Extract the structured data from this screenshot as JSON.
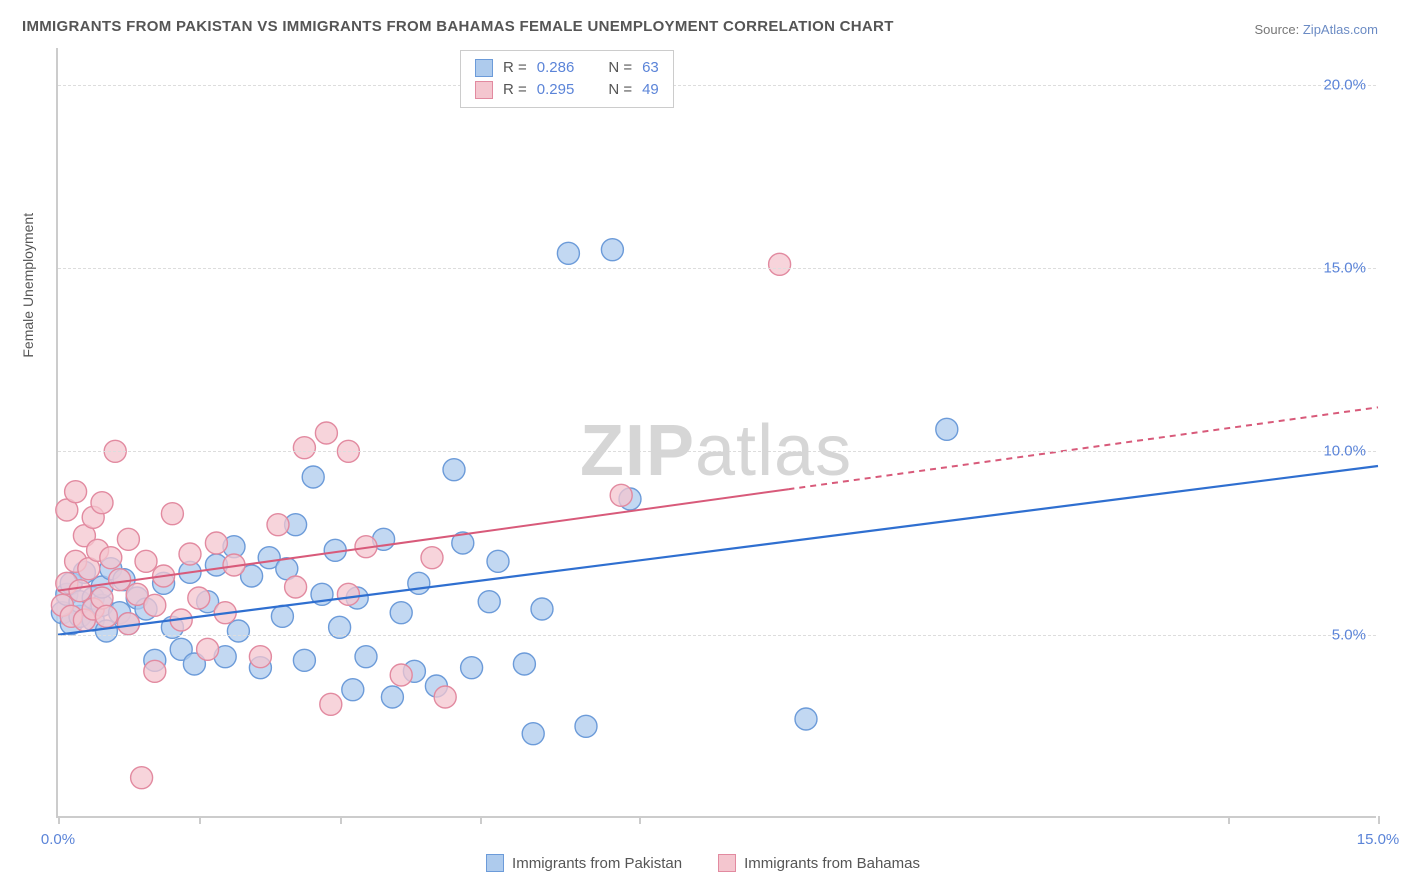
{
  "title": "IMMIGRANTS FROM PAKISTAN VS IMMIGRANTS FROM BAHAMAS FEMALE UNEMPLOYMENT CORRELATION CHART",
  "source_prefix": "Source: ",
  "source_link": "ZipAtlas.com",
  "yaxis_label": "Female Unemployment",
  "watermark_a": "ZIP",
  "watermark_b": "atlas",
  "chart": {
    "type": "scatter",
    "xlim": [
      0,
      15
    ],
    "ylim": [
      0,
      21
    ],
    "ytick_values": [
      5,
      10,
      15,
      20
    ],
    "ytick_labels": [
      "5.0%",
      "10.0%",
      "15.0%",
      "20.0%"
    ],
    "xtick_values": [
      0,
      1.6,
      3.2,
      4.8,
      6.6,
      13.3,
      15
    ],
    "xtick_labels": {
      "0": "0.0%",
      "15": "15.0%"
    },
    "grid_color": "#dddddd",
    "axis_color": "#cccccc",
    "background_color": "#ffffff",
    "series": [
      {
        "name": "Immigrants from Pakistan",
        "marker_fill": "#aecbed",
        "marker_stroke": "#6c9bd9",
        "marker_opacity": 0.75,
        "marker_radius": 11,
        "line_color": "#2f6fd0",
        "line_width": 2.2,
        "R": 0.286,
        "N": 63,
        "trend": {
          "x0": 0,
          "y0": 5.0,
          "x1": 15,
          "y1": 9.6,
          "solid_until": 15
        },
        "points": [
          [
            0.05,
            5.6
          ],
          [
            0.1,
            6.1
          ],
          [
            0.15,
            5.3
          ],
          [
            0.15,
            6.4
          ],
          [
            0.25,
            5.5
          ],
          [
            0.25,
            5.9
          ],
          [
            0.3,
            6.7
          ],
          [
            0.4,
            5.4
          ],
          [
            0.4,
            6.0
          ],
          [
            0.5,
            5.8
          ],
          [
            0.5,
            6.3
          ],
          [
            0.55,
            5.1
          ],
          [
            0.6,
            6.8
          ],
          [
            0.7,
            5.6
          ],
          [
            0.75,
            6.5
          ],
          [
            0.8,
            5.3
          ],
          [
            0.9,
            6.0
          ],
          [
            1.0,
            5.7
          ],
          [
            1.1,
            4.3
          ],
          [
            1.2,
            6.4
          ],
          [
            1.3,
            5.2
          ],
          [
            1.4,
            4.6
          ],
          [
            1.5,
            6.7
          ],
          [
            1.55,
            4.2
          ],
          [
            1.7,
            5.9
          ],
          [
            1.8,
            6.9
          ],
          [
            1.9,
            4.4
          ],
          [
            2.0,
            7.4
          ],
          [
            2.05,
            5.1
          ],
          [
            2.2,
            6.6
          ],
          [
            2.3,
            4.1
          ],
          [
            2.4,
            7.1
          ],
          [
            2.55,
            5.5
          ],
          [
            2.6,
            6.8
          ],
          [
            2.7,
            8.0
          ],
          [
            2.8,
            4.3
          ],
          [
            2.9,
            9.3
          ],
          [
            3.0,
            6.1
          ],
          [
            3.15,
            7.3
          ],
          [
            3.2,
            5.2
          ],
          [
            3.35,
            3.5
          ],
          [
            3.4,
            6.0
          ],
          [
            3.5,
            4.4
          ],
          [
            3.7,
            7.6
          ],
          [
            3.8,
            3.3
          ],
          [
            3.9,
            5.6
          ],
          [
            4.05,
            4.0
          ],
          [
            4.1,
            6.4
          ],
          [
            4.3,
            3.6
          ],
          [
            4.5,
            9.5
          ],
          [
            4.6,
            7.5
          ],
          [
            4.7,
            4.1
          ],
          [
            4.9,
            5.9
          ],
          [
            5.0,
            7.0
          ],
          [
            5.3,
            4.2
          ],
          [
            5.4,
            2.3
          ],
          [
            5.5,
            5.7
          ],
          [
            5.8,
            15.4
          ],
          [
            6.0,
            2.5
          ],
          [
            6.3,
            15.5
          ],
          [
            6.5,
            8.7
          ],
          [
            8.5,
            2.7
          ],
          [
            10.1,
            10.6
          ]
        ]
      },
      {
        "name": "Immigrants from Bahamas",
        "marker_fill": "#f4c6cf",
        "marker_stroke": "#e28aa0",
        "marker_opacity": 0.75,
        "marker_radius": 11,
        "line_color": "#d85a7a",
        "line_width": 2.0,
        "R": 0.295,
        "N": 49,
        "trend": {
          "x0": 0,
          "y0": 6.2,
          "x1": 15,
          "y1": 11.2,
          "solid_until": 8.3
        },
        "points": [
          [
            0.05,
            5.8
          ],
          [
            0.1,
            6.4
          ],
          [
            0.1,
            8.4
          ],
          [
            0.15,
            5.5
          ],
          [
            0.2,
            7.0
          ],
          [
            0.2,
            8.9
          ],
          [
            0.25,
            6.2
          ],
          [
            0.3,
            7.7
          ],
          [
            0.3,
            5.4
          ],
          [
            0.35,
            6.8
          ],
          [
            0.4,
            8.2
          ],
          [
            0.4,
            5.7
          ],
          [
            0.45,
            7.3
          ],
          [
            0.5,
            6.0
          ],
          [
            0.5,
            8.6
          ],
          [
            0.55,
            5.5
          ],
          [
            0.6,
            7.1
          ],
          [
            0.65,
            10.0
          ],
          [
            0.7,
            6.5
          ],
          [
            0.8,
            5.3
          ],
          [
            0.8,
            7.6
          ],
          [
            0.9,
            6.1
          ],
          [
            0.95,
            1.1
          ],
          [
            1.0,
            7.0
          ],
          [
            1.1,
            5.8
          ],
          [
            1.1,
            4.0
          ],
          [
            1.2,
            6.6
          ],
          [
            1.3,
            8.3
          ],
          [
            1.4,
            5.4
          ],
          [
            1.5,
            7.2
          ],
          [
            1.6,
            6.0
          ],
          [
            1.7,
            4.6
          ],
          [
            1.8,
            7.5
          ],
          [
            1.9,
            5.6
          ],
          [
            2.0,
            6.9
          ],
          [
            2.3,
            4.4
          ],
          [
            2.5,
            8.0
          ],
          [
            2.7,
            6.3
          ],
          [
            2.8,
            10.1
          ],
          [
            3.05,
            10.5
          ],
          [
            3.1,
            3.1
          ],
          [
            3.3,
            6.1
          ],
          [
            3.3,
            10.0
          ],
          [
            3.5,
            7.4
          ],
          [
            3.9,
            3.9
          ],
          [
            4.25,
            7.1
          ],
          [
            4.4,
            3.3
          ],
          [
            6.4,
            8.8
          ],
          [
            8.2,
            15.1
          ]
        ]
      }
    ]
  },
  "legend_top": {
    "r_label": "R =",
    "n_label": "N =",
    "rows": [
      {
        "swatch_fill": "#aecbed",
        "swatch_stroke": "#6c9bd9",
        "r": "0.286",
        "n": "63"
      },
      {
        "swatch_fill": "#f4c6cf",
        "swatch_stroke": "#e28aa0",
        "r": "0.295",
        "n": "49"
      }
    ]
  },
  "legend_bottom": [
    {
      "swatch_fill": "#aecbed",
      "swatch_stroke": "#6c9bd9",
      "label": "Immigrants from Pakistan"
    },
    {
      "swatch_fill": "#f4c6cf",
      "swatch_stroke": "#e28aa0",
      "label": "Immigrants from Bahamas"
    }
  ]
}
